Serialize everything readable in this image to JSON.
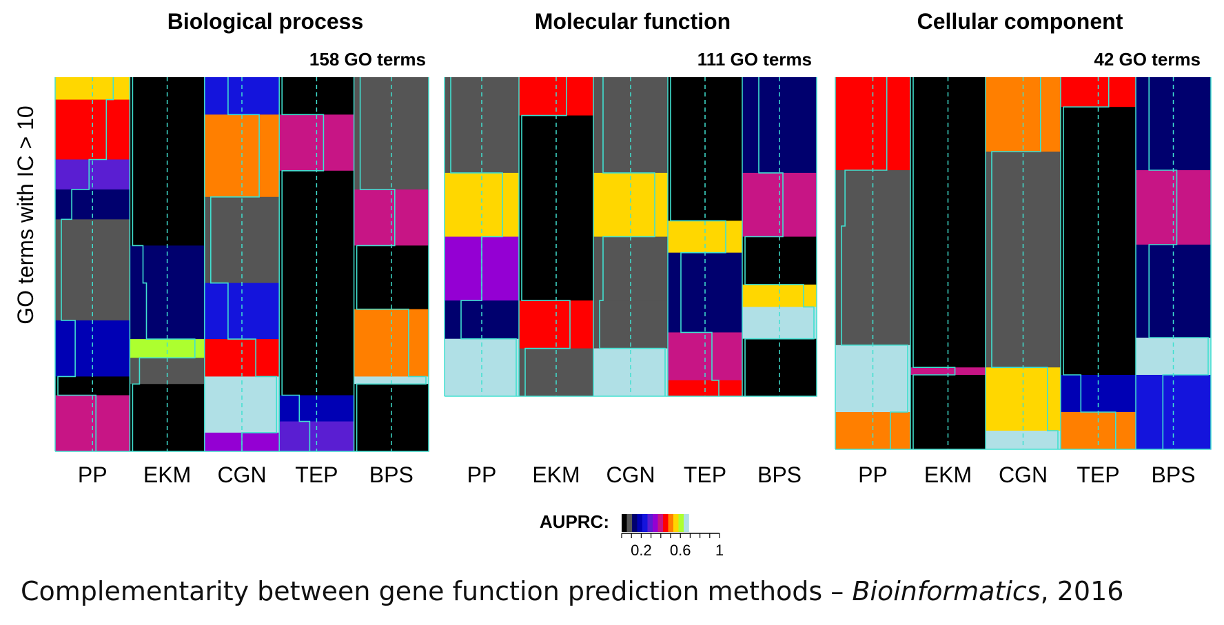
{
  "figure": {
    "ylabel": "GO terms with IC > 10",
    "caption_main": "Complementarity between gene function prediction methods – ",
    "caption_journal": "Bioinformatics",
    "caption_year": ", 2016"
  },
  "legend": {
    "label": "AUPRC:",
    "ticks": [
      "0.2",
      "0.6",
      "1"
    ],
    "tick_values": [
      0.2,
      0.6,
      1
    ],
    "colors": [
      "#000000",
      "#555555",
      "#00006e",
      "#0000b4",
      "#1414dc",
      "#5a1ed2",
      "#9400d3",
      "#c71585",
      "#ff0000",
      "#ff7f00",
      "#ffd700",
      "#adff2f",
      "#b0e0e6"
    ],
    "outline_color": "#40e0d0"
  },
  "chart_data": [
    {
      "type": "heatmap",
      "title": "Biological process",
      "subtitle": "158 GO terms",
      "methods": [
        "PP",
        "EKM",
        "CGN",
        "TEP",
        "BPS"
      ],
      "value_scale": "AUPRC",
      "blocks": [
        [
          [
            0,
            0.06,
            0.8
          ],
          [
            0.06,
            0.22,
            0.7
          ],
          [
            0.22,
            0.3,
            0.45
          ],
          [
            0.3,
            0.38,
            0.2
          ],
          [
            0.38,
            0.65,
            0.05
          ],
          [
            0.65,
            0.8,
            0.25
          ],
          [
            0.8,
            0.85,
            0.0
          ],
          [
            0.85,
            1,
            0.55
          ]
        ],
        [
          [
            0,
            0.45,
            0.0
          ],
          [
            0.45,
            0.55,
            0.15
          ],
          [
            0.55,
            0.7,
            0.2
          ],
          [
            0.7,
            0.75,
            0.9
          ],
          [
            0.75,
            0.82,
            0.1
          ],
          [
            0.82,
            1,
            0.0
          ]
        ],
        [
          [
            0,
            0.1,
            0.3
          ],
          [
            0.1,
            0.32,
            0.75
          ],
          [
            0.32,
            0.55,
            0.05
          ],
          [
            0.55,
            0.7,
            0.3
          ],
          [
            0.7,
            0.8,
            0.7
          ],
          [
            0.8,
            0.95,
            1.0
          ],
          [
            0.95,
            1,
            0.5
          ]
        ],
        [
          [
            0,
            0.1,
            0.0
          ],
          [
            0.1,
            0.25,
            0.6
          ],
          [
            0.25,
            0.85,
            0.0
          ],
          [
            0.85,
            0.92,
            0.25
          ],
          [
            0.92,
            1,
            0.4
          ]
        ],
        [
          [
            0,
            0.3,
            0.05
          ],
          [
            0.3,
            0.45,
            0.55
          ],
          [
            0.45,
            0.62,
            0.0
          ],
          [
            0.62,
            0.8,
            0.75
          ],
          [
            0.8,
            0.82,
            1.0
          ],
          [
            0.82,
            1,
            0.0
          ]
        ]
      ]
    },
    {
      "type": "heatmap",
      "title": "Molecular function",
      "subtitle": "111 GO terms",
      "methods": [
        "PP",
        "EKM",
        "CGN",
        "TEP",
        "BPS"
      ],
      "value_scale": "AUPRC",
      "blocks": [
        [
          [
            0,
            0.3,
            0.05
          ],
          [
            0.3,
            0.5,
            0.8
          ],
          [
            0.5,
            0.7,
            0.5
          ],
          [
            0.7,
            0.82,
            0.2
          ],
          [
            0.82,
            1,
            1.0
          ]
        ],
        [
          [
            0,
            0.12,
            0.65
          ],
          [
            0.12,
            0.7,
            0.0
          ],
          [
            0.7,
            0.85,
            0.7
          ],
          [
            0.85,
            1,
            0.05
          ]
        ],
        [
          [
            0,
            0.3,
            0.1
          ],
          [
            0.3,
            0.5,
            0.85
          ],
          [
            0.5,
            0.7,
            0.1
          ],
          [
            0.7,
            0.85,
            0.05
          ],
          [
            0.85,
            1,
            1.0
          ]
        ],
        [
          [
            0,
            0.45,
            0.0
          ],
          [
            0.45,
            0.55,
            0.8
          ],
          [
            0.55,
            0.8,
            0.15
          ],
          [
            0.8,
            0.95,
            0.6
          ],
          [
            0.95,
            1,
            0.7
          ]
        ],
        [
          [
            0,
            0.3,
            0.2
          ],
          [
            0.3,
            0.5,
            0.55
          ],
          [
            0.5,
            0.65,
            0.0
          ],
          [
            0.65,
            0.72,
            0.85
          ],
          [
            0.72,
            0.82,
            1.0
          ],
          [
            0.82,
            1,
            0.0
          ]
        ]
      ]
    },
    {
      "type": "heatmap",
      "title": "Cellular component",
      "subtitle": "42 GO terms",
      "methods": [
        "PP",
        "EKM",
        "CGN",
        "TEP",
        "BPS"
      ],
      "value_scale": "AUPRC",
      "blocks": [
        [
          [
            0,
            0.25,
            0.7
          ],
          [
            0.25,
            0.4,
            0.1
          ],
          [
            0.4,
            0.72,
            0.05
          ],
          [
            0.72,
            0.9,
            1.0
          ],
          [
            0.9,
            1,
            0.75
          ]
        ],
        [
          [
            0,
            0.78,
            0.0
          ],
          [
            0.78,
            0.8,
            0.6
          ],
          [
            0.8,
            1,
            0.0
          ]
        ],
        [
          [
            0,
            0.2,
            0.75
          ],
          [
            0.2,
            0.78,
            0.05
          ],
          [
            0.78,
            0.95,
            0.85
          ],
          [
            0.95,
            1,
            1.0
          ]
        ],
        [
          [
            0,
            0.08,
            0.65
          ],
          [
            0.08,
            0.8,
            0.0
          ],
          [
            0.8,
            0.9,
            0.25
          ],
          [
            0.9,
            1,
            0.75
          ]
        ],
        [
          [
            0,
            0.25,
            0.15
          ],
          [
            0.25,
            0.45,
            0.55
          ],
          [
            0.45,
            0.7,
            0.15
          ],
          [
            0.7,
            0.8,
            1.0
          ],
          [
            0.8,
            1,
            0.35
          ]
        ]
      ]
    }
  ]
}
